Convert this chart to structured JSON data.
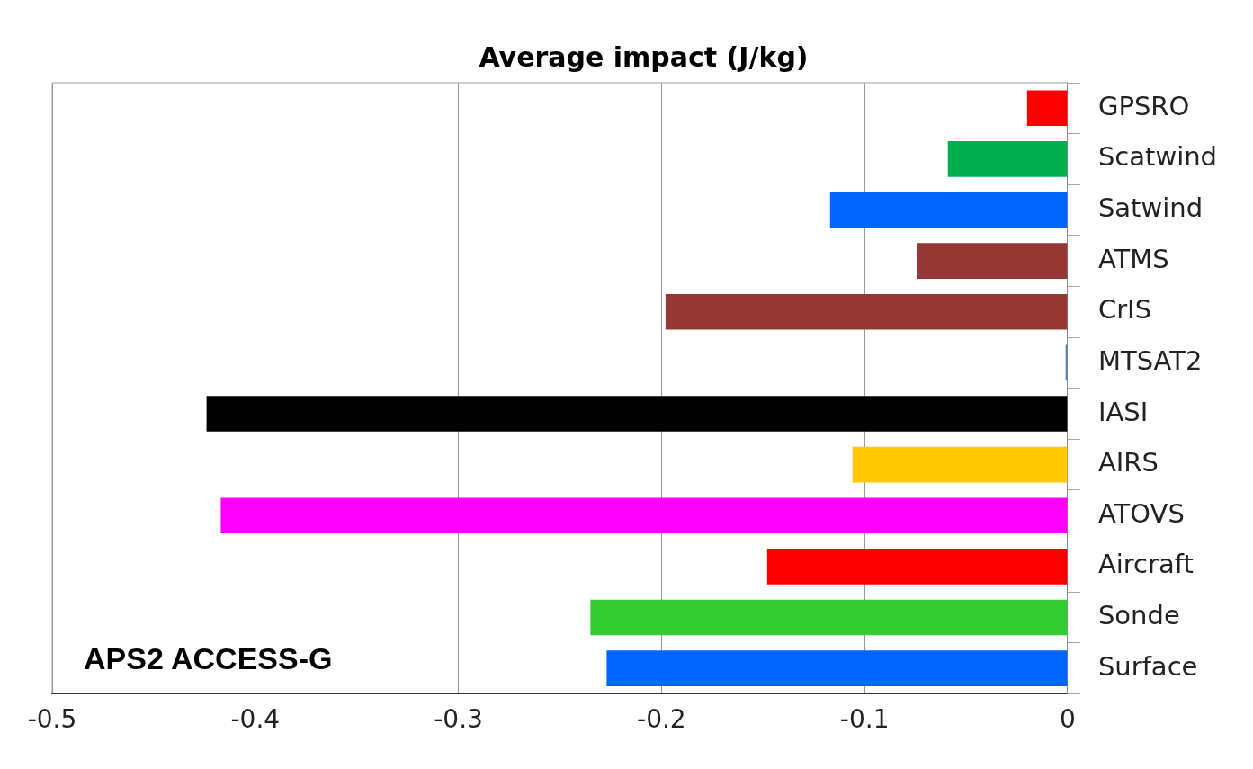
{
  "chart_data": {
    "type": "bar",
    "orientation": "horizontal",
    "title": "Average impact (J/kg)",
    "categories": [
      "GPSRO",
      "Scatwind",
      "Satwind",
      "ATMS",
      "CrIS",
      "MTSAT2",
      "IASI",
      "AIRS",
      "ATOVS",
      "Aircraft",
      "Sonde",
      "Surface"
    ],
    "values": [
      -0.02,
      -0.059,
      -0.117,
      -0.074,
      -0.198,
      -0.001,
      -0.424,
      -0.106,
      -0.417,
      -0.148,
      -0.235,
      -0.227
    ],
    "colors": [
      "#ff0000",
      "#00b050",
      "#0066ff",
      "#953735",
      "#953735",
      "#4f81bd",
      "#000000",
      "#ffc800",
      "#ff00ff",
      "#ff0000",
      "#33cc33",
      "#0066ff"
    ],
    "xlim": [
      -0.5,
      0
    ],
    "xticks": [
      -0.5,
      -0.4,
      -0.3,
      -0.2,
      -0.1,
      0
    ],
    "grid": "x",
    "annotations": [
      "APS2 ACCESS-G"
    ]
  }
}
